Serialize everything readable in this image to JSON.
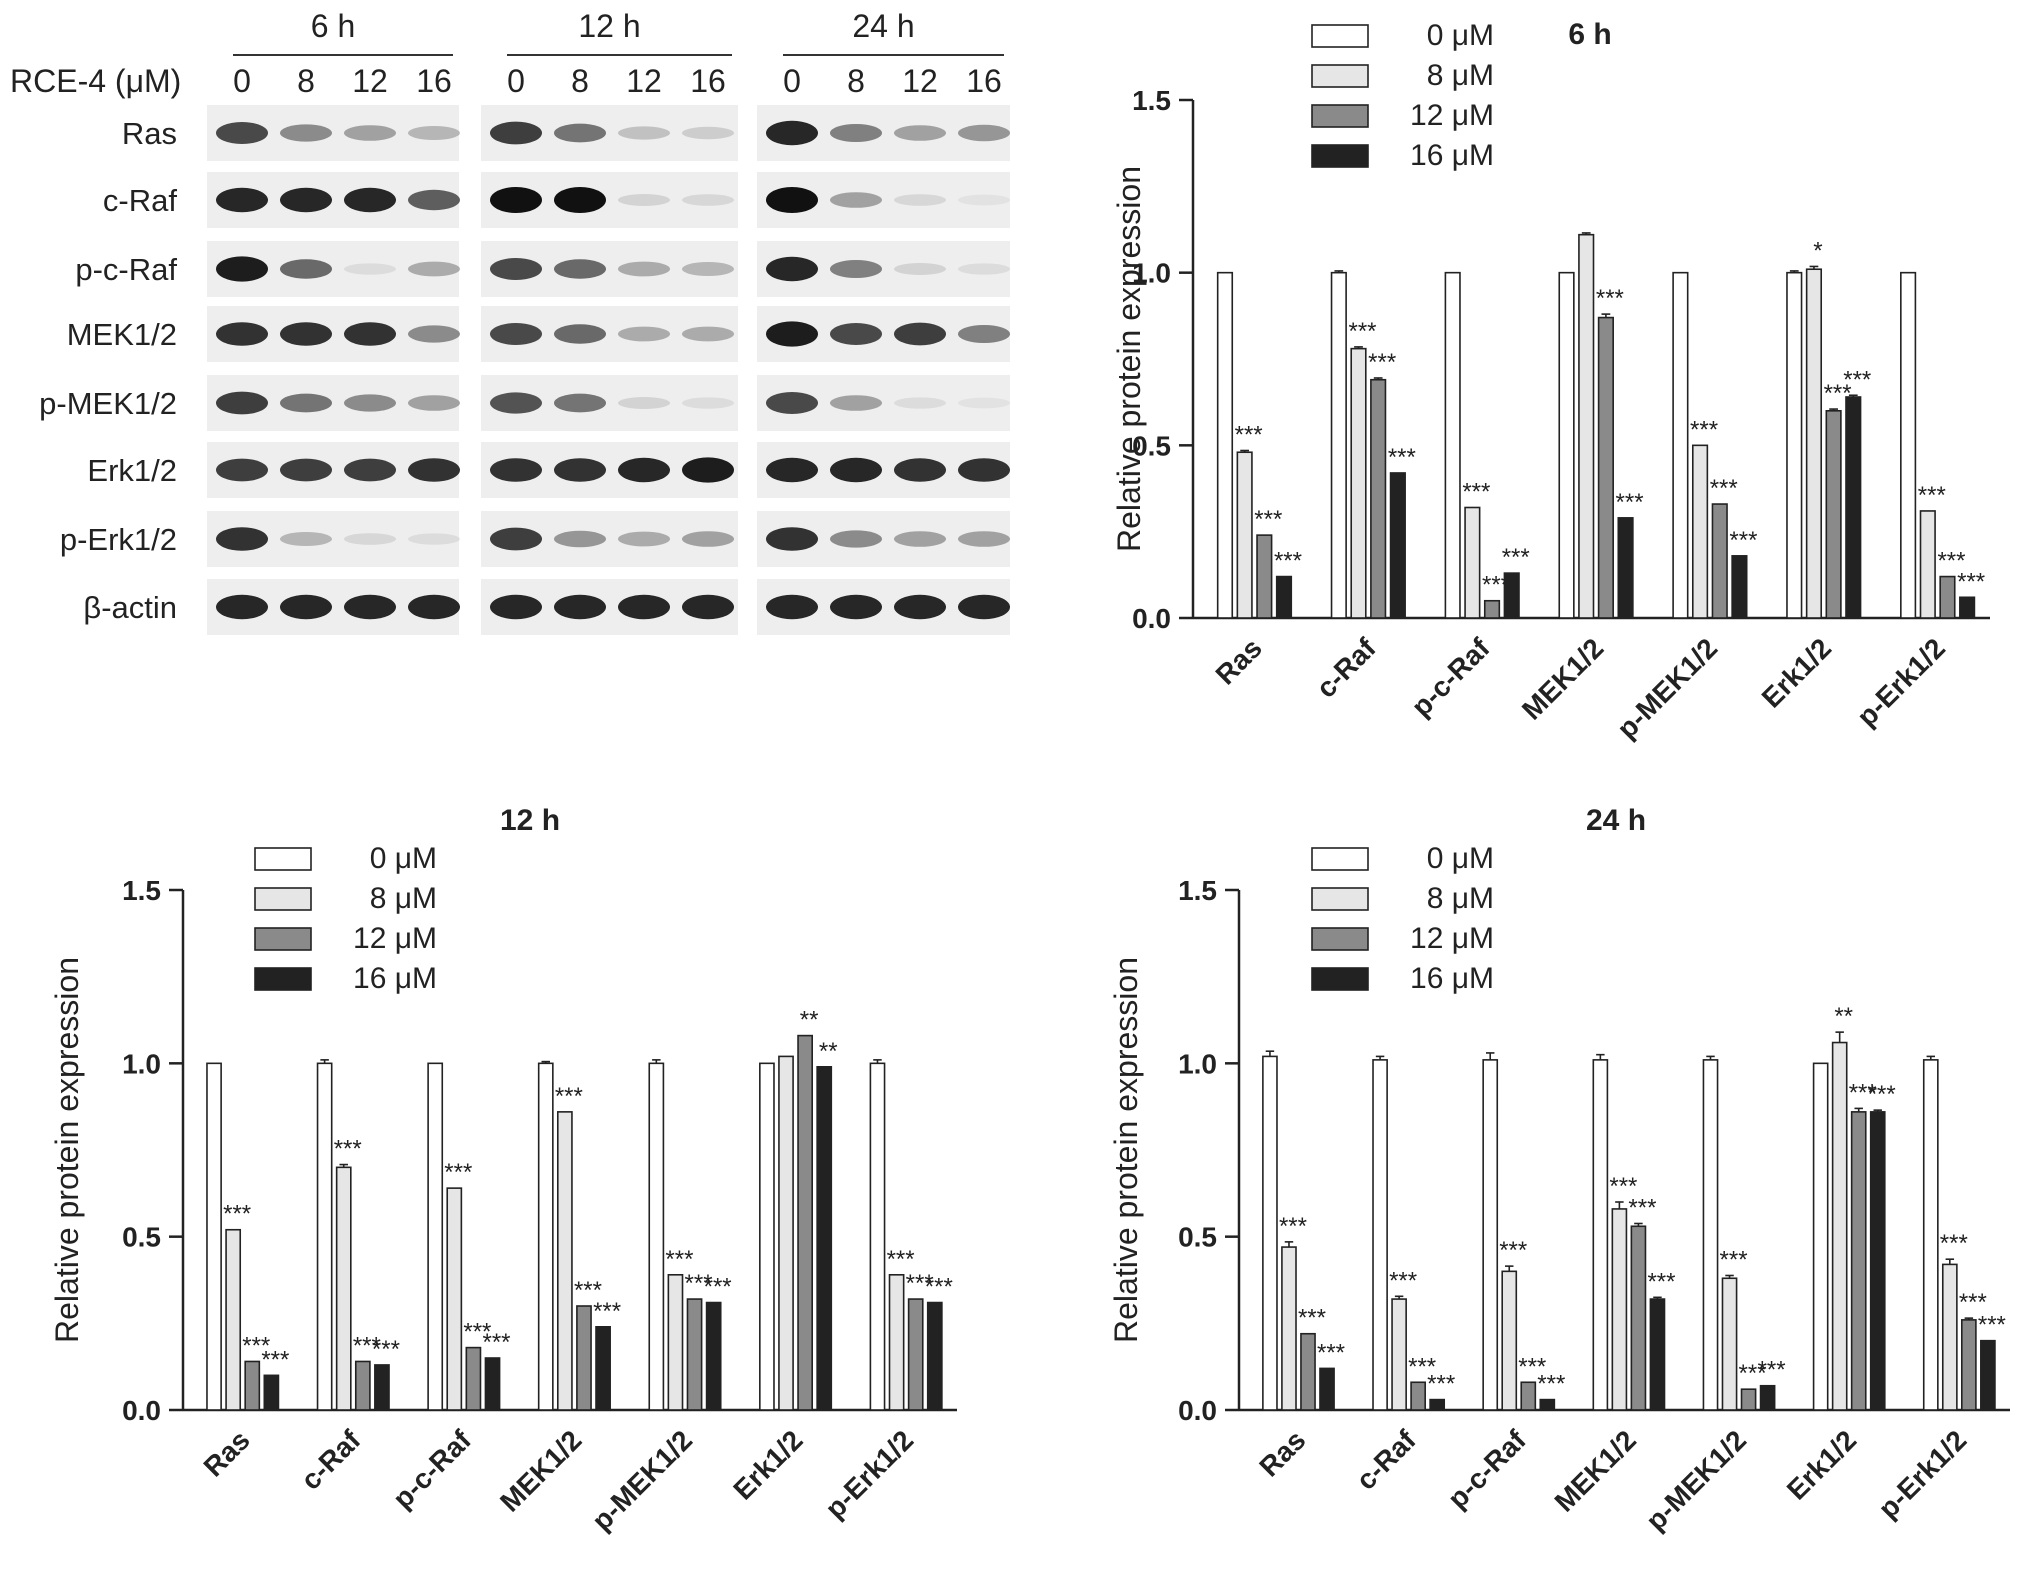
{
  "blot": {
    "drug_label": "RCE-4 (μM)",
    "timepoints": [
      "6 h",
      "12 h",
      "24 h"
    ],
    "concentrations": [
      "0",
      "8",
      "12",
      "16"
    ],
    "proteins": [
      "Ras",
      "c-Raf",
      "p-c-Raf",
      "MEK1/2",
      "p-MEK1/2",
      "Erk1/2",
      "p-Erk1/2",
      "β-actin"
    ],
    "band_intensity": [
      [
        [
          0.75,
          0.45,
          0.35,
          0.25
        ],
        [
          0.8,
          0.55,
          0.2,
          0.15
        ],
        [
          0.9,
          0.5,
          0.35,
          0.4
        ]
      ],
      [
        [
          0.9,
          0.9,
          0.9,
          0.65
        ],
        [
          1.0,
          1.0,
          0.12,
          0.1
        ],
        [
          1.0,
          0.35,
          0.1,
          0.05
        ]
      ],
      [
        [
          0.95,
          0.6,
          0.08,
          0.3
        ],
        [
          0.75,
          0.6,
          0.3,
          0.25
        ],
        [
          0.9,
          0.5,
          0.12,
          0.08
        ]
      ],
      [
        [
          0.85,
          0.85,
          0.85,
          0.45
        ],
        [
          0.75,
          0.6,
          0.3,
          0.3
        ],
        [
          0.95,
          0.75,
          0.8,
          0.5
        ]
      ],
      [
        [
          0.8,
          0.55,
          0.45,
          0.35
        ],
        [
          0.7,
          0.55,
          0.12,
          0.08
        ],
        [
          0.75,
          0.35,
          0.08,
          0.05
        ]
      ],
      [
        [
          0.8,
          0.8,
          0.8,
          0.85
        ],
        [
          0.85,
          0.85,
          0.9,
          0.95
        ],
        [
          0.9,
          0.9,
          0.85,
          0.85
        ]
      ],
      [
        [
          0.85,
          0.25,
          0.1,
          0.08
        ],
        [
          0.8,
          0.4,
          0.3,
          0.35
        ],
        [
          0.85,
          0.45,
          0.35,
          0.35
        ]
      ],
      [
        [
          0.9,
          0.9,
          0.9,
          0.9
        ],
        [
          0.9,
          0.9,
          0.9,
          0.9
        ],
        [
          0.9,
          0.9,
          0.9,
          0.9
        ]
      ]
    ]
  },
  "legend": [
    "0 μM",
    "8 μM",
    "12 μM",
    "16 μM"
  ],
  "colors": {
    "c0": "#ffffff",
    "c8": "#e6e6e6",
    "c12": "#8a8a8a",
    "c16": "#222222"
  },
  "chart_data": [
    {
      "type": "bar",
      "title": "6 h",
      "ylabel": "Relative protein expression",
      "ylim": [
        0,
        1.5
      ],
      "yticks": [
        "0.0",
        "0.5",
        "1.0",
        "1.5"
      ],
      "categories": [
        "Ras",
        "c-Raf",
        "p-c-Raf",
        "MEK1/2",
        "p-MEK1/2",
        "Erk1/2",
        "p-Erk1/2"
      ],
      "series": [
        {
          "name": "0 μM",
          "values": [
            1.0,
            1.0,
            1.0,
            1.0,
            1.0,
            1.0,
            1.0
          ],
          "errors": [
            0,
            0.005,
            0,
            0,
            0,
            0.005,
            0
          ],
          "sig": [
            "",
            "",
            "",
            "",
            "",
            "",
            ""
          ]
        },
        {
          "name": "8 μM",
          "values": [
            0.48,
            0.78,
            0.32,
            1.11,
            0.5,
            1.01,
            0.31
          ],
          "errors": [
            0.005,
            0.005,
            0,
            0.005,
            0,
            0.008,
            0
          ],
          "sig": [
            "***",
            "***",
            "***",
            "",
            "***",
            "*",
            "***"
          ]
        },
        {
          "name": "12 μM",
          "values": [
            0.24,
            0.69,
            0.05,
            0.87,
            0.33,
            0.6,
            0.12
          ],
          "errors": [
            0,
            0.005,
            0,
            0.01,
            0,
            0.005,
            0
          ],
          "sig": [
            "***",
            "***",
            "***",
            "***",
            "***",
            "***",
            "***"
          ]
        },
        {
          "name": "16 μM",
          "values": [
            0.12,
            0.42,
            0.13,
            0.29,
            0.18,
            0.64,
            0.06
          ],
          "errors": [
            0,
            0,
            0,
            0,
            0,
            0.005,
            0
          ],
          "sig": [
            "***",
            "***",
            "***",
            "***",
            "***",
            "***",
            "***"
          ]
        }
      ]
    },
    {
      "type": "bar",
      "title": "12 h",
      "ylabel": "Relative protein expression",
      "ylim": [
        0,
        1.5
      ],
      "yticks": [
        "0.0",
        "0.5",
        "1.0",
        "1.5"
      ],
      "categories": [
        "Ras",
        "c-Raf",
        "p-c-Raf",
        "MEK1/2",
        "p-MEK1/2",
        "Erk1/2",
        "p-Erk1/2"
      ],
      "series": [
        {
          "name": "0 μM",
          "values": [
            1.0,
            1.0,
            1.0,
            1.0,
            1.0,
            1.0,
            1.0
          ],
          "errors": [
            0,
            0.01,
            0,
            0.005,
            0.01,
            0,
            0.01
          ],
          "sig": [
            "",
            "",
            "",
            "",
            "",
            "",
            ""
          ]
        },
        {
          "name": "8 μM",
          "values": [
            0.52,
            0.7,
            0.64,
            0.86,
            0.39,
            1.02,
            0.39
          ],
          "errors": [
            0,
            0.008,
            0,
            0,
            0,
            0,
            0
          ],
          "sig": [
            "***",
            "***",
            "***",
            "***",
            "***",
            "",
            "***"
          ]
        },
        {
          "name": "12 μM",
          "values": [
            0.14,
            0.14,
            0.18,
            0.3,
            0.32,
            1.08,
            0.32
          ],
          "errors": [
            0,
            0,
            0,
            0,
            0,
            0,
            0
          ],
          "sig": [
            "***",
            "***",
            "***",
            "***",
            "***",
            "**",
            "***"
          ]
        },
        {
          "name": "16 μM",
          "values": [
            0.1,
            0.13,
            0.15,
            0.24,
            0.31,
            0.99,
            0.31
          ],
          "errors": [
            0,
            0,
            0,
            0,
            0,
            0,
            0
          ],
          "sig": [
            "***",
            "***",
            "***",
            "***",
            "***",
            "**",
            "***"
          ]
        }
      ]
    },
    {
      "type": "bar",
      "title": "24 h",
      "ylabel": "Relative protein expression",
      "ylim": [
        0,
        1.5
      ],
      "yticks": [
        "0.0",
        "0.5",
        "1.0",
        "1.5"
      ],
      "categories": [
        "Ras",
        "c-Raf",
        "p-c-Raf",
        "MEK1/2",
        "p-MEK1/2",
        "Erk1/2",
        "p-Erk1/2"
      ],
      "series": [
        {
          "name": "0 μM",
          "values": [
            1.02,
            1.01,
            1.01,
            1.01,
            1.01,
            1.0,
            1.01
          ],
          "errors": [
            0.015,
            0.01,
            0.02,
            0.015,
            0.01,
            0,
            0.01
          ],
          "sig": [
            "",
            "",
            "",
            "",
            "",
            "",
            ""
          ]
        },
        {
          "name": "8 μM",
          "values": [
            0.47,
            0.32,
            0.4,
            0.58,
            0.38,
            1.06,
            0.42
          ],
          "errors": [
            0.015,
            0.008,
            0.015,
            0.02,
            0.008,
            0.03,
            0.015
          ],
          "sig": [
            "***",
            "***",
            "***",
            "***",
            "***",
            "**",
            "***"
          ]
        },
        {
          "name": "12 μM",
          "values": [
            0.22,
            0.08,
            0.08,
            0.53,
            0.06,
            0.86,
            0.26
          ],
          "errors": [
            0,
            0,
            0,
            0.008,
            0,
            0.01,
            0.005
          ],
          "sig": [
            "***",
            "***",
            "***",
            "***",
            "***",
            "***",
            "***"
          ]
        },
        {
          "name": "16 μM",
          "values": [
            0.12,
            0.03,
            0.03,
            0.32,
            0.07,
            0.86,
            0.2
          ],
          "errors": [
            0,
            0,
            0,
            0.005,
            0,
            0.005,
            0
          ],
          "sig": [
            "***",
            "***",
            "***",
            "***",
            "***",
            "***",
            "***"
          ]
        }
      ]
    }
  ]
}
